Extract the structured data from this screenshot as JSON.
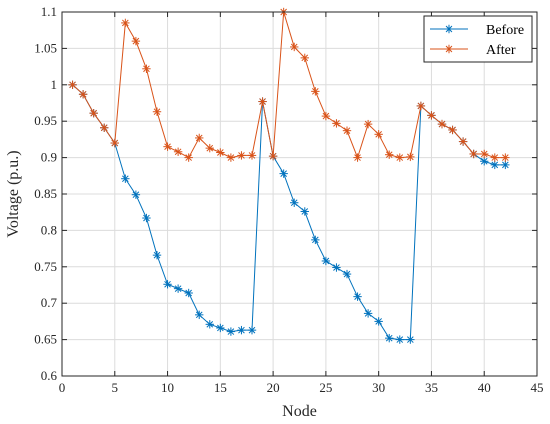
{
  "chart_data": {
    "type": "line",
    "title": "",
    "xlabel": "Node",
    "ylabel": "Voltage (p.u.)",
    "xlim": [
      0,
      45
    ],
    "ylim": [
      0.6,
      1.1
    ],
    "xticks": [
      0,
      5,
      10,
      15,
      20,
      25,
      30,
      35,
      40,
      45
    ],
    "yticks": [
      0.6,
      0.65,
      0.7,
      0.75,
      0.8,
      0.85,
      0.9,
      0.95,
      1,
      1.05,
      1.1
    ],
    "xtick_labels": [
      "0",
      "5",
      "10",
      "15",
      "20",
      "25",
      "30",
      "35",
      "40",
      "45"
    ],
    "ytick_labels": [
      "0.6",
      "0.65",
      "0.7",
      "0.75",
      "0.8",
      "0.85",
      "0.9",
      "0.95",
      "1",
      "1.05",
      "1.1"
    ],
    "grid": true,
    "legend_position": "top-right",
    "marker": "asterisk",
    "x": [
      1,
      2,
      3,
      4,
      5,
      6,
      7,
      8,
      9,
      10,
      11,
      12,
      13,
      14,
      15,
      16,
      17,
      18,
      19,
      20,
      21,
      22,
      23,
      24,
      25,
      26,
      27,
      28,
      29,
      30,
      31,
      32,
      33,
      34,
      35,
      36,
      37,
      38,
      39,
      40,
      41,
      42
    ],
    "series": [
      {
        "name": "Before",
        "color": "#0072BD",
        "values": [
          1.0,
          0.987,
          0.961,
          0.941,
          0.92,
          0.871,
          0.849,
          0.817,
          0.766,
          0.726,
          0.72,
          0.714,
          0.684,
          0.671,
          0.666,
          0.661,
          0.663,
          0.663,
          0.977,
          0.902,
          0.878,
          0.838,
          0.826,
          0.787,
          0.758,
          0.749,
          0.74,
          0.709,
          0.686,
          0.675,
          0.652,
          0.65,
          0.65,
          0.971,
          0.958,
          0.946,
          0.938,
          0.922,
          0.905,
          0.895,
          0.89,
          0.89
        ]
      },
      {
        "name": "After",
        "color": "#D95319",
        "values": [
          1.0,
          0.987,
          0.961,
          0.941,
          0.92,
          1.085,
          1.06,
          1.022,
          0.963,
          0.915,
          0.908,
          0.9,
          0.927,
          0.913,
          0.907,
          0.9,
          0.903,
          0.903,
          0.977,
          0.902,
          1.1,
          1.052,
          1.037,
          0.991,
          0.957,
          0.947,
          0.937,
          0.9,
          0.946,
          0.932,
          0.904,
          0.9,
          0.901,
          0.971,
          0.958,
          0.946,
          0.938,
          0.922,
          0.905,
          0.905,
          0.9,
          0.9
        ]
      }
    ]
  }
}
